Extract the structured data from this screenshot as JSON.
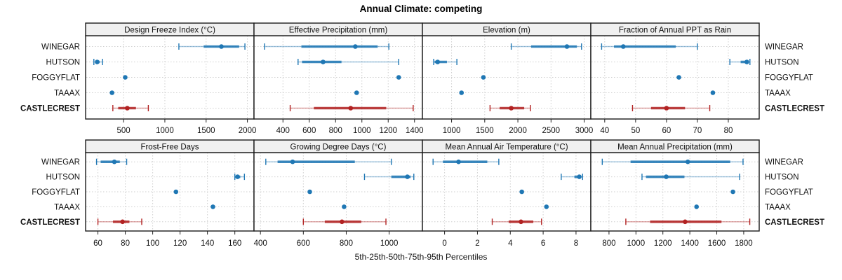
{
  "title": "Annual Climate: competing",
  "xlabel": "5th-25th-50th-75th-95th Percentiles",
  "sites": [
    "WINEGAR",
    "HUTSON",
    "FOGGYFLAT",
    "TAAAX",
    "CASTLECREST"
  ],
  "highlight_site": "CASTLECREST",
  "colors": {
    "series": "#1f77b4",
    "highlight": "#b22222",
    "strip_bg": "#f0f0f0",
    "grid": "#cfcfcf",
    "border": "#1a1a1a"
  },
  "chart_data": {
    "type": "scatter",
    "subtype": "trellis-percentile-dotplot",
    "title": "Annual Climate: competing",
    "xlabel": "5th-25th-50th-75th-95th Percentiles",
    "legend_position": "none",
    "grid": "dotted",
    "percentiles": [
      5,
      25,
      50,
      75,
      95
    ],
    "categories": [
      "WINEGAR",
      "HUTSON",
      "FOGGYFLAT",
      "TAAAX",
      "CASTLECREST"
    ],
    "panels": [
      {
        "title": "Design Freeze Index (°C)",
        "ticks": [
          500,
          1000,
          1500,
          2000
        ],
        "xlim": [
          40,
          2080
        ],
        "values": {
          "WINEGAR": [
            1170,
            1470,
            1685,
            1900,
            1970
          ],
          "HUTSON": [
            140,
            160,
            180,
            210,
            245
          ],
          "FOGGYFLAT": [
            520,
            520,
            520,
            520,
            520
          ],
          "TAAAX": [
            360,
            360,
            360,
            360,
            360
          ],
          "CASTLECREST": [
            370,
            435,
            545,
            650,
            800
          ]
        }
      },
      {
        "title": "Effective Precipitation (mm)",
        "ticks": [
          400,
          600,
          800,
          1000,
          1200,
          1400
        ],
        "xlim": [
          180,
          1460
        ],
        "values": {
          "WINEGAR": [
            260,
            540,
            950,
            1120,
            1205
          ],
          "HUTSON": [
            515,
            545,
            705,
            845,
            1280
          ],
          "FOGGYFLAT": [
            1280,
            1280,
            1280,
            1280,
            1280
          ],
          "TAAAX": [
            960,
            960,
            960,
            960,
            960
          ],
          "CASTLECREST": [
            455,
            635,
            915,
            1185,
            1390
          ]
        }
      },
      {
        "title": "Elevation (m)",
        "ticks": [
          1000,
          1500,
          2000,
          2500,
          3000
        ],
        "xlim": [
          560,
          3100
        ],
        "values": {
          "WINEGAR": [
            1900,
            2200,
            2740,
            2890,
            2960
          ],
          "HUTSON": [
            730,
            745,
            790,
            930,
            1080
          ],
          "FOGGYFLAT": [
            1480,
            1480,
            1480,
            1480,
            1480
          ],
          "TAAAX": [
            1150,
            1150,
            1150,
            1150,
            1150
          ],
          "CASTLECREST": [
            1580,
            1725,
            1900,
            2095,
            2190
          ]
        }
      },
      {
        "title": "Fraction of Annual PPT as Rain",
        "ticks": [
          40,
          50,
          60,
          70,
          80
        ],
        "xlim": [
          35.5,
          90
        ],
        "values": {
          "WINEGAR": [
            39,
            43,
            46,
            63,
            70
          ],
          "HUTSON": [
            80.5,
            84,
            86,
            86.5,
            87
          ],
          "FOGGYFLAT": [
            64,
            64,
            64,
            64,
            64
          ],
          "TAAAX": [
            75,
            75,
            75,
            75,
            75
          ],
          "CASTLECREST": [
            49,
            55,
            60,
            66,
            74
          ]
        }
      },
      {
        "title": "Frost-Free Days",
        "ticks": [
          60,
          80,
          100,
          120,
          140,
          160
        ],
        "xlim": [
          51,
          174
        ],
        "values": {
          "WINEGAR": [
            59,
            62,
            72,
            76,
            81
          ],
          "HUTSON": [
            160,
            161,
            162,
            164,
            167
          ],
          "FOGGYFLAT": [
            117,
            117,
            117,
            117,
            117
          ],
          "TAAAX": [
            144,
            144,
            144,
            144,
            144
          ],
          "CASTLECREST": [
            60,
            71,
            78,
            83,
            92
          ]
        }
      },
      {
        "title": "Growing Degree Days (°C)",
        "ticks": [
          400,
          600,
          800,
          1000
        ],
        "xlim": [
          370,
          1155
        ],
        "values": {
          "WINEGAR": [
            425,
            480,
            550,
            840,
            1010
          ],
          "HUTSON": [
            885,
            1010,
            1085,
            1100,
            1115
          ],
          "FOGGYFLAT": [
            630,
            630,
            630,
            630,
            630
          ],
          "TAAAX": [
            790,
            790,
            790,
            790,
            790
          ],
          "CASTLECREST": [
            600,
            700,
            780,
            870,
            985
          ]
        }
      },
      {
        "title": "Mean Annual Air Temperature (°C)",
        "ticks": [
          0,
          2,
          4,
          6,
          8
        ],
        "xlim": [
          -1.35,
          8.9
        ],
        "values": {
          "WINEGAR": [
            -0.7,
            -0.1,
            0.85,
            2.6,
            3.3
          ],
          "HUTSON": [
            7.1,
            7.9,
            8.2,
            8.3,
            8.4
          ],
          "FOGGYFLAT": [
            4.7,
            4.7,
            4.7,
            4.7,
            4.7
          ],
          "TAAAX": [
            6.2,
            6.2,
            6.2,
            6.2,
            6.2
          ],
          "CASTLECREST": [
            2.9,
            3.9,
            4.65,
            5.4,
            5.9
          ]
        }
      },
      {
        "title": "Mean Annual Precipitation (mm)",
        "ticks": [
          800,
          1000,
          1200,
          1400,
          1600,
          1800
        ],
        "xlim": [
          665,
          1915
        ],
        "values": {
          "WINEGAR": [
            750,
            960,
            1385,
            1700,
            1795
          ],
          "HUTSON": [
            1045,
            1075,
            1225,
            1360,
            1770
          ],
          "FOGGYFLAT": [
            1720,
            1720,
            1720,
            1720,
            1720
          ],
          "TAAAX": [
            1450,
            1450,
            1450,
            1450,
            1450
          ],
          "CASTLECREST": [
            925,
            1105,
            1365,
            1635,
            1845
          ]
        }
      }
    ]
  }
}
